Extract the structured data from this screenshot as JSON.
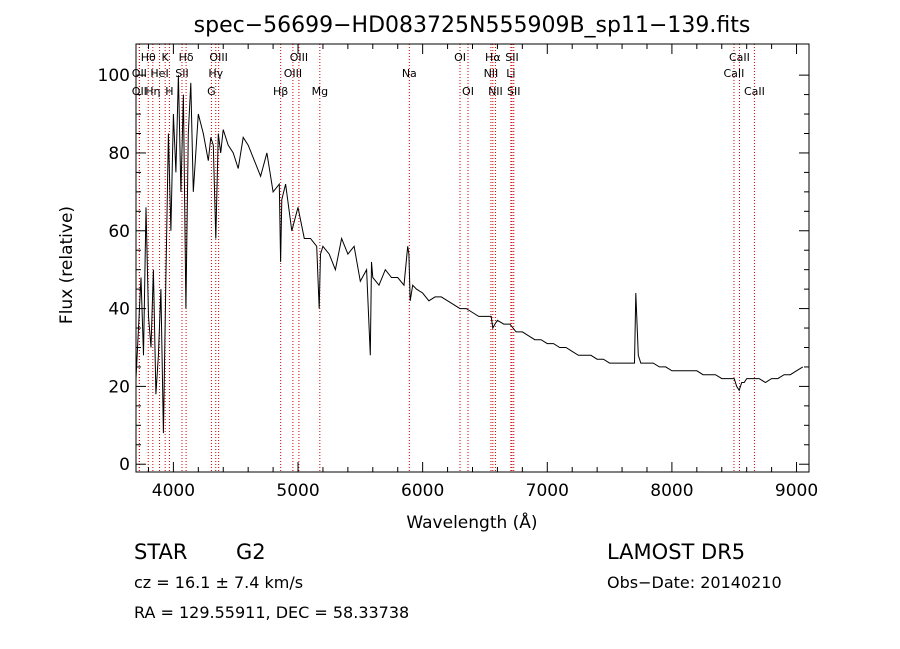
{
  "chart_data": {
    "type": "line",
    "title": "spec−56699−HD083725N555909B_sp11−139.fits",
    "xlabel": "Wavelength (Å)",
    "ylabel": "Flux (relative)",
    "xlim": [
      3700,
      9100
    ],
    "ylim": [
      -2,
      108
    ],
    "xticks": [
      4000,
      5000,
      6000,
      7000,
      8000,
      9000
    ],
    "xtick_labels": [
      "4000",
      "5000",
      "6000",
      "7000",
      "8000",
      "9000"
    ],
    "yticks": [
      0,
      20,
      40,
      60,
      80,
      100
    ],
    "ytick_labels": [
      "0",
      "20",
      "40",
      "60",
      "80",
      "100"
    ],
    "grid": false,
    "series": [
      {
        "color": "#000000",
        "x": [
          3700,
          3720,
          3740,
          3760,
          3780,
          3800,
          3820,
          3840,
          3860,
          3880,
          3900,
          3920,
          3940,
          3960,
          3980,
          4000,
          4020,
          4040,
          4060,
          4080,
          4100,
          4120,
          4140,
          4160,
          4180,
          4200,
          4240,
          4280,
          4300,
          4320,
          4340,
          4360,
          4380,
          4400,
          4440,
          4480,
          4520,
          4560,
          4600,
          4650,
          4700,
          4750,
          4800,
          4850,
          4860,
          4870,
          4900,
          4950,
          5000,
          5050,
          5100,
          5150,
          5170,
          5180,
          5200,
          5250,
          5300,
          5350,
          5400,
          5450,
          5500,
          5550,
          5580,
          5590,
          5600,
          5650,
          5700,
          5750,
          5800,
          5850,
          5880,
          5890,
          5900,
          5920,
          5950,
          6000,
          6050,
          6100,
          6150,
          6200,
          6250,
          6300,
          6350,
          6400,
          6450,
          6500,
          6550,
          6563,
          6580,
          6600,
          6650,
          6700,
          6750,
          6800,
          6850,
          6900,
          6950,
          7000,
          7050,
          7100,
          7150,
          7200,
          7250,
          7300,
          7350,
          7400,
          7450,
          7500,
          7550,
          7600,
          7650,
          7680,
          7700,
          7710,
          7730,
          7750,
          7800,
          7850,
          7900,
          7950,
          8000,
          8050,
          8100,
          8150,
          8200,
          8250,
          8300,
          8350,
          8400,
          8450,
          8500,
          8520,
          8540,
          8560,
          8580,
          8600,
          8650,
          8700,
          8750,
          8800,
          8850,
          8900,
          8950,
          9000,
          9050
        ],
        "y": [
          22,
          35,
          48,
          28,
          66,
          38,
          30,
          50,
          18,
          28,
          45,
          8,
          48,
          85,
          60,
          90,
          75,
          100,
          70,
          95,
          40,
          85,
          98,
          70,
          80,
          90,
          85,
          78,
          84,
          82,
          58,
          85,
          80,
          86,
          82,
          80,
          76,
          84,
          82,
          78,
          74,
          80,
          70,
          72,
          52,
          68,
          72,
          60,
          66,
          58,
          58,
          56,
          40,
          54,
          56,
          54,
          50,
          58,
          54,
          56,
          47,
          50,
          28,
          52,
          48,
          46,
          50,
          48,
          48,
          46,
          56,
          54,
          42,
          46,
          45,
          44,
          42,
          43,
          43,
          42,
          41,
          40,
          40,
          39,
          38,
          38,
          38,
          35,
          36,
          37,
          36,
          36,
          34,
          34,
          33,
          32,
          32,
          31,
          31,
          30,
          30,
          29,
          28,
          28,
          28,
          27,
          27,
          26,
          26,
          26,
          26,
          26,
          26,
          44,
          28,
          26,
          26,
          26,
          25,
          25,
          24,
          24,
          24,
          24,
          24,
          23,
          23,
          23,
          22,
          22,
          22,
          20,
          19,
          21,
          21,
          22,
          22,
          22,
          21,
          22,
          22,
          23,
          23,
          24,
          25
        ]
      }
    ],
    "line_markers": [
      {
        "label": "Hθ",
        "x": 3798,
        "row": 0
      },
      {
        "label": "K",
        "x": 3934,
        "row": 0
      },
      {
        "label": "Hδ",
        "x": 4102,
        "row": 0
      },
      {
        "label": "OIII",
        "x": 4363,
        "row": 0
      },
      {
        "label": "OIII",
        "x": 5007,
        "row": 0
      },
      {
        "label": "OI",
        "x": 6300,
        "row": 0
      },
      {
        "label": "Hα",
        "x": 6563,
        "row": 0
      },
      {
        "label": "SII",
        "x": 6717,
        "row": 0
      },
      {
        "label": "CaII",
        "x": 8542,
        "row": 0
      },
      {
        "label": "OII",
        "x": 3727,
        "row": 1
      },
      {
        "label": "HeI",
        "x": 3889,
        "row": 1
      },
      {
        "label": "SII",
        "x": 4069,
        "row": 1
      },
      {
        "label": "Hγ",
        "x": 4340,
        "row": 1
      },
      {
        "label": "OIII",
        "x": 4959,
        "row": 1
      },
      {
        "label": "Na",
        "x": 5893,
        "row": 1
      },
      {
        "label": "NII",
        "x": 6548,
        "row": 1
      },
      {
        "label": "Li",
        "x": 6708,
        "row": 1
      },
      {
        "label": "CaII",
        "x": 8498,
        "row": 1
      },
      {
        "label": "OII",
        "x": 3727,
        "row": 2
      },
      {
        "label": "Hη",
        "x": 3835,
        "row": 2
      },
      {
        "label": "H",
        "x": 3968,
        "row": 2
      },
      {
        "label": "G",
        "x": 4305,
        "row": 2
      },
      {
        "label": "Hβ",
        "x": 4861,
        "row": 2
      },
      {
        "label": "Mg",
        "x": 5175,
        "row": 2
      },
      {
        "label": "OI",
        "x": 6364,
        "row": 2
      },
      {
        "label": "NII",
        "x": 6584,
        "row": 2
      },
      {
        "label": "SII",
        "x": 6731,
        "row": 2
      },
      {
        "label": "CaII",
        "x": 8662,
        "row": 2
      }
    ],
    "marker_color": "#cc0000"
  },
  "info": {
    "class": "STAR",
    "subclass": "G2",
    "survey": "LAMOST  DR5",
    "cz": "cz = 16.1 ± 7.4 km/s",
    "obs_date": "Obs−Date: 20140210",
    "coords": "RA = 129.55911, DEC =  58.33738"
  }
}
